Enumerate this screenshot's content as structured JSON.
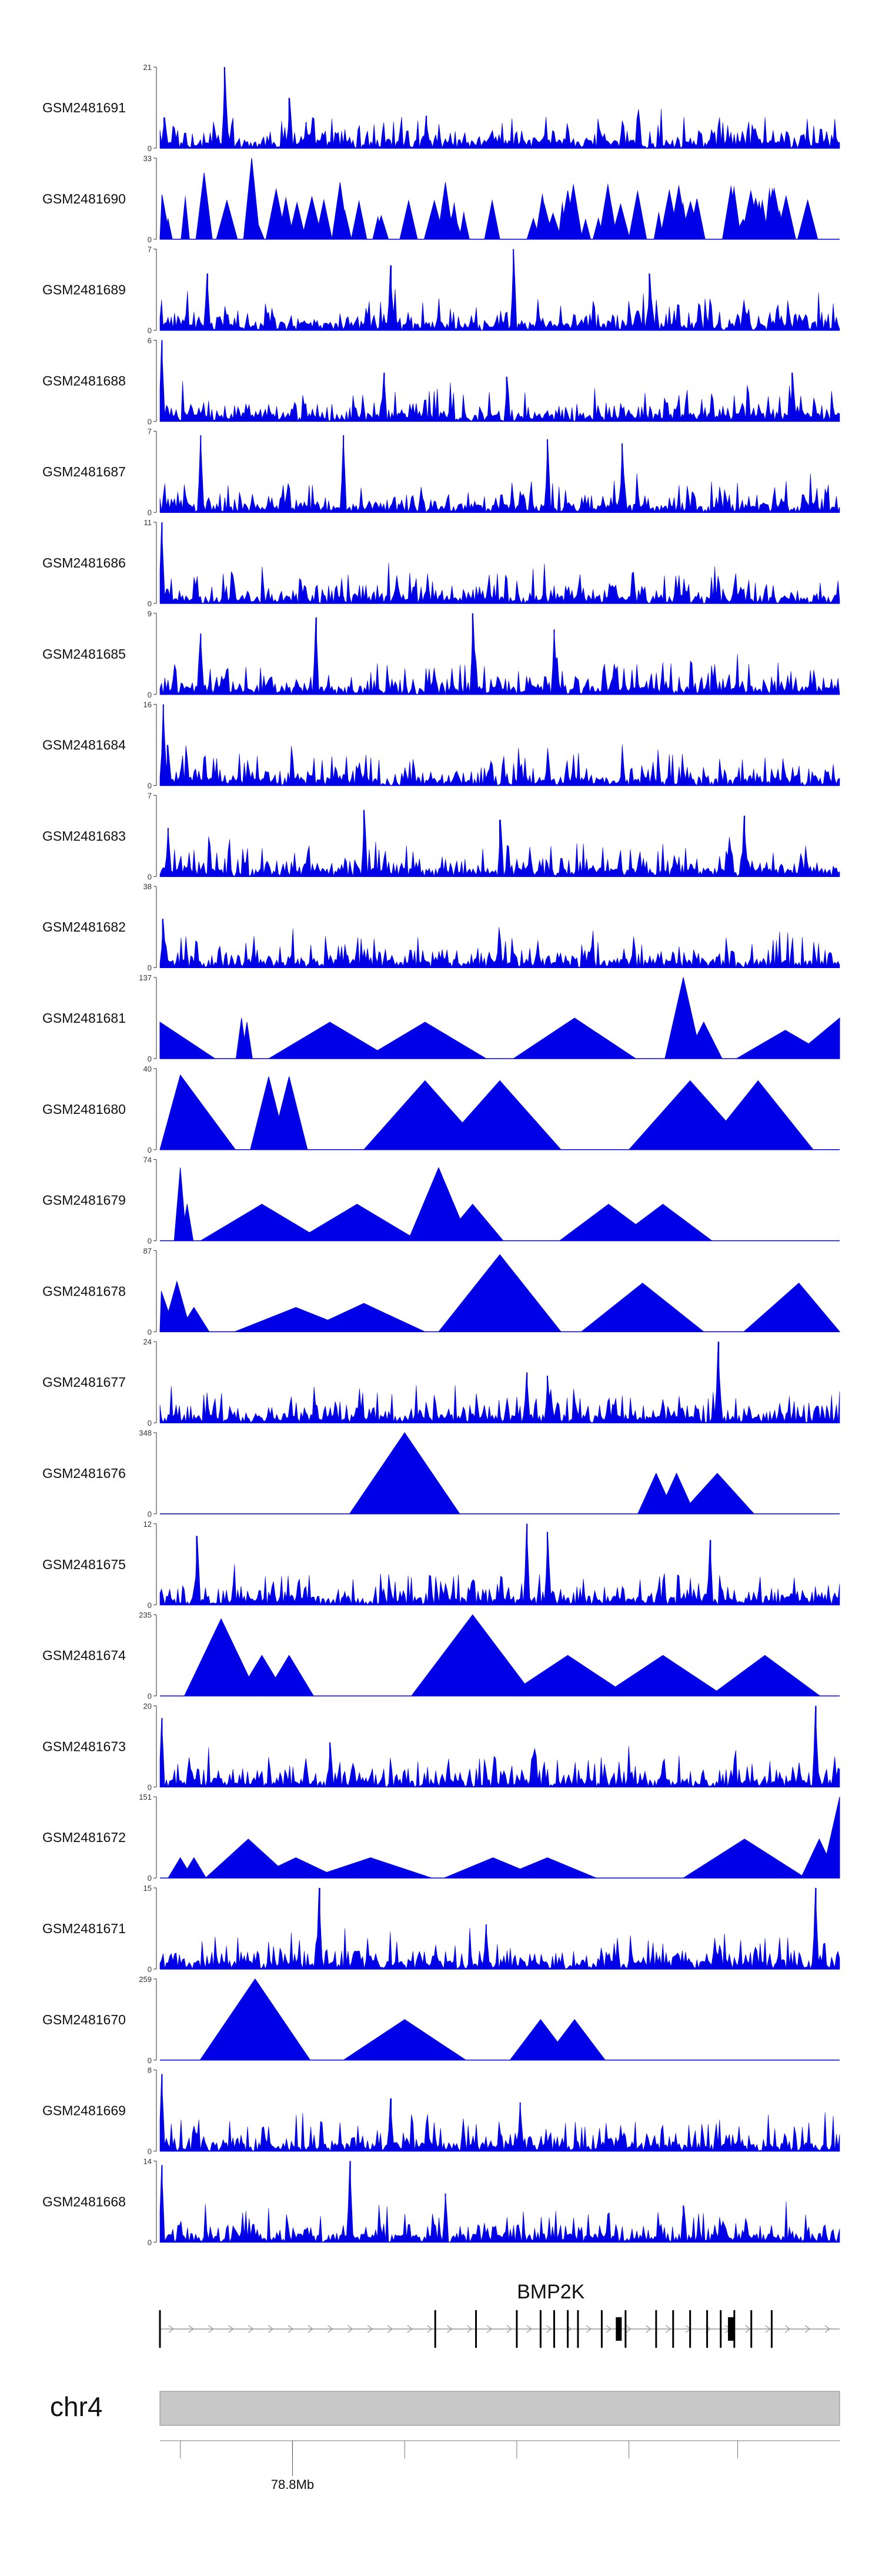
{
  "chart_data": {
    "type": "area",
    "title": "",
    "series_color": "#0000e6",
    "tracks": [
      {
        "name": "GSM2481691",
        "ymax": 21,
        "ymin": 0,
        "style": "dense",
        "peaks": [
          {
            "x": 0.006,
            "h": 0.38
          },
          {
            "x": 0.095,
            "h": 1.0
          },
          {
            "x": 0.19,
            "h": 0.62
          },
          {
            "x": 0.215,
            "h": 0.32
          },
          {
            "x": 0.392,
            "h": 0.4
          }
        ]
      },
      {
        "name": "GSM2481690",
        "ymax": 33,
        "ymin": 0,
        "style": "sparse",
        "peaks": [
          {
            "x": 0.003,
            "h": 0.55
          },
          {
            "x": 0.065,
            "h": 0.82
          },
          {
            "x": 0.135,
            "h": 1.0
          },
          {
            "x": 0.265,
            "h": 0.7
          },
          {
            "x": 0.42,
            "h": 0.7
          },
          {
            "x": 0.6,
            "h": 0.6
          },
          {
            "x": 0.79,
            "h": 0.5
          }
        ]
      },
      {
        "name": "GSM2481689",
        "ymax": 7,
        "ymin": 0,
        "style": "dense",
        "peaks": [
          {
            "x": 0.07,
            "h": 0.7
          },
          {
            "x": 0.34,
            "h": 0.8
          },
          {
            "x": 0.52,
            "h": 1.0
          },
          {
            "x": 0.72,
            "h": 0.7
          }
        ]
      },
      {
        "name": "GSM2481688",
        "ymax": 6,
        "ymin": 0,
        "style": "dense",
        "peaks": [
          {
            "x": 0.003,
            "h": 1.0
          },
          {
            "x": 0.33,
            "h": 0.6
          },
          {
            "x": 0.51,
            "h": 0.55
          },
          {
            "x": 0.93,
            "h": 0.6
          }
        ]
      },
      {
        "name": "GSM2481687",
        "ymax": 7,
        "ymin": 0,
        "style": "dense",
        "peaks": [
          {
            "x": 0.06,
            "h": 0.95
          },
          {
            "x": 0.27,
            "h": 0.95
          },
          {
            "x": 0.57,
            "h": 0.9
          },
          {
            "x": 0.68,
            "h": 0.85
          }
        ]
      },
      {
        "name": "GSM2481686",
        "ymax": 11,
        "ymin": 0,
        "style": "dense",
        "peaks": [
          {
            "x": 0.003,
            "h": 1.0
          },
          {
            "x": 0.35,
            "h": 0.2
          }
        ]
      },
      {
        "name": "GSM2481685",
        "ymax": 9,
        "ymin": 0,
        "style": "dense",
        "peaks": [
          {
            "x": 0.06,
            "h": 0.75
          },
          {
            "x": 0.23,
            "h": 0.95
          },
          {
            "x": 0.46,
            "h": 1.0
          },
          {
            "x": 0.58,
            "h": 0.8
          }
        ]
      },
      {
        "name": "GSM2481684",
        "ymax": 16,
        "ymin": 0,
        "style": "dense",
        "peaks": [
          {
            "x": 0.005,
            "h": 1.0
          },
          {
            "x": 0.011,
            "h": 0.5
          }
        ]
      },
      {
        "name": "GSM2481683",
        "ymax": 7,
        "ymin": 0,
        "style": "dense",
        "peaks": [
          {
            "x": 0.012,
            "h": 0.6
          },
          {
            "x": 0.3,
            "h": 0.82
          },
          {
            "x": 0.5,
            "h": 0.7
          },
          {
            "x": 0.86,
            "h": 0.75
          }
        ]
      },
      {
        "name": "GSM2481682",
        "ymax": 38,
        "ymin": 0,
        "style": "dense",
        "peaks": [
          {
            "x": 0.004,
            "h": 0.6
          }
        ]
      },
      {
        "name": "GSM2481681",
        "ymax": 137,
        "ymin": 0,
        "style": "triangles",
        "peaks": [
          {
            "x": 0.0,
            "h": 0.45
          },
          {
            "x": 0.12,
            "h": 0.5
          },
          {
            "x": 0.128,
            "h": 0.45
          },
          {
            "x": 0.25,
            "h": 0.45
          },
          {
            "x": 0.39,
            "h": 0.45
          },
          {
            "x": 0.61,
            "h": 0.5
          },
          {
            "x": 0.77,
            "h": 1.0
          },
          {
            "x": 0.8,
            "h": 0.45
          },
          {
            "x": 0.92,
            "h": 0.35
          },
          {
            "x": 1.0,
            "h": 0.5
          }
        ]
      },
      {
        "name": "GSM2481680",
        "ymax": 40,
        "ymin": 0,
        "style": "triangles",
        "peaks": [
          {
            "x": 0.03,
            "h": 0.92
          },
          {
            "x": 0.16,
            "h": 0.9
          },
          {
            "x": 0.19,
            "h": 0.9
          },
          {
            "x": 0.39,
            "h": 0.85
          },
          {
            "x": 0.5,
            "h": 0.85
          },
          {
            "x": 0.78,
            "h": 0.85
          },
          {
            "x": 0.88,
            "h": 0.85
          }
        ]
      },
      {
        "name": "GSM2481679",
        "ymax": 74,
        "ymin": 0,
        "style": "triangles",
        "peaks": [
          {
            "x": 0.03,
            "h": 0.9
          },
          {
            "x": 0.04,
            "h": 0.45
          },
          {
            "x": 0.15,
            "h": 0.45
          },
          {
            "x": 0.29,
            "h": 0.45
          },
          {
            "x": 0.41,
            "h": 0.9
          },
          {
            "x": 0.46,
            "h": 0.45
          },
          {
            "x": 0.66,
            "h": 0.45
          },
          {
            "x": 0.74,
            "h": 0.45
          }
        ]
      },
      {
        "name": "GSM2481678",
        "ymax": 87,
        "ymin": 0,
        "style": "triangles",
        "peaks": [
          {
            "x": 0.002,
            "h": 0.5
          },
          {
            "x": 0.025,
            "h": 0.62
          },
          {
            "x": 0.05,
            "h": 0.3
          },
          {
            "x": 0.2,
            "h": 0.3
          },
          {
            "x": 0.3,
            "h": 0.35
          },
          {
            "x": 0.5,
            "h": 0.95
          },
          {
            "x": 0.71,
            "h": 0.6
          },
          {
            "x": 0.94,
            "h": 0.6
          }
        ]
      },
      {
        "name": "GSM2481677",
        "ymax": 24,
        "ymin": 0,
        "style": "dense",
        "peaks": [
          {
            "x": 0.23,
            "h": 0.22
          },
          {
            "x": 0.54,
            "h": 0.62
          },
          {
            "x": 0.57,
            "h": 0.58
          },
          {
            "x": 0.822,
            "h": 1.0
          }
        ]
      },
      {
        "name": "GSM2481676",
        "ymax": 348,
        "ymin": 0,
        "style": "triangles",
        "peaks": [
          {
            "x": 0.36,
            "h": 1.0
          },
          {
            "x": 0.73,
            "h": 0.5
          },
          {
            "x": 0.76,
            "h": 0.5
          },
          {
            "x": 0.82,
            "h": 0.5
          }
        ]
      },
      {
        "name": "GSM2481675",
        "ymax": 12,
        "ymin": 0,
        "style": "dense",
        "peaks": [
          {
            "x": 0.054,
            "h": 0.85
          },
          {
            "x": 0.54,
            "h": 1.0
          },
          {
            "x": 0.57,
            "h": 0.9
          },
          {
            "x": 0.81,
            "h": 0.8
          }
        ]
      },
      {
        "name": "GSM2481674",
        "ymax": 235,
        "ymin": 0,
        "style": "triangles",
        "peaks": [
          {
            "x": 0.09,
            "h": 0.95
          },
          {
            "x": 0.15,
            "h": 0.5
          },
          {
            "x": 0.19,
            "h": 0.5
          },
          {
            "x": 0.46,
            "h": 1.0
          },
          {
            "x": 0.6,
            "h": 0.5
          },
          {
            "x": 0.74,
            "h": 0.5
          },
          {
            "x": 0.89,
            "h": 0.5
          }
        ]
      },
      {
        "name": "GSM2481673",
        "ymax": 20,
        "ymin": 0,
        "style": "dense",
        "peaks": [
          {
            "x": 0.003,
            "h": 0.85
          },
          {
            "x": 0.25,
            "h": 0.55
          },
          {
            "x": 0.965,
            "h": 1.0
          }
        ]
      },
      {
        "name": "GSM2481672",
        "ymax": 151,
        "ymin": 0,
        "style": "triangles",
        "peaks": [
          {
            "x": 0.03,
            "h": 0.25
          },
          {
            "x": 0.05,
            "h": 0.25
          },
          {
            "x": 0.13,
            "h": 0.48
          },
          {
            "x": 0.2,
            "h": 0.25
          },
          {
            "x": 0.31,
            "h": 0.25
          },
          {
            "x": 0.49,
            "h": 0.25
          },
          {
            "x": 0.57,
            "h": 0.25
          },
          {
            "x": 0.86,
            "h": 0.48
          },
          {
            "x": 0.97,
            "h": 0.48
          },
          {
            "x": 1.0,
            "h": 1.0
          }
        ]
      },
      {
        "name": "GSM2481671",
        "ymax": 15,
        "ymin": 0,
        "style": "dense",
        "peaks": [
          {
            "x": 0.235,
            "h": 1.0
          },
          {
            "x": 0.48,
            "h": 0.55
          },
          {
            "x": 0.965,
            "h": 1.0
          }
        ]
      },
      {
        "name": "GSM2481670",
        "ymax": 259,
        "ymin": 0,
        "style": "triangles",
        "peaks": [
          {
            "x": 0.14,
            "h": 1.0
          },
          {
            "x": 0.36,
            "h": 0.5
          },
          {
            "x": 0.56,
            "h": 0.5
          },
          {
            "x": 0.61,
            "h": 0.5
          }
        ]
      },
      {
        "name": "GSM2481669",
        "ymax": 8,
        "ymin": 0,
        "style": "dense",
        "peaks": [
          {
            "x": 0.003,
            "h": 0.95
          },
          {
            "x": 0.34,
            "h": 0.65
          },
          {
            "x": 0.53,
            "h": 0.6
          }
        ]
      },
      {
        "name": "GSM2481668",
        "ymax": 14,
        "ymin": 0,
        "style": "dense",
        "peaks": [
          {
            "x": 0.003,
            "h": 0.95
          },
          {
            "x": 0.28,
            "h": 1.0
          },
          {
            "x": 0.42,
            "h": 0.6
          },
          {
            "x": 0.77,
            "h": 0.45
          }
        ]
      }
    ],
    "gene": {
      "name": "BMP2K",
      "strand": "+",
      "exons": [
        0.0,
        0.405,
        0.465,
        0.525,
        0.56,
        0.58,
        0.6,
        0.615,
        0.65,
        0.685,
        0.73,
        0.755,
        0.78,
        0.805,
        0.825,
        0.845,
        0.87,
        0.9
      ]
    },
    "chromosome": {
      "name": "chr4",
      "tick_label": "78.8Mb",
      "tick_label_position": 0.195
    }
  }
}
